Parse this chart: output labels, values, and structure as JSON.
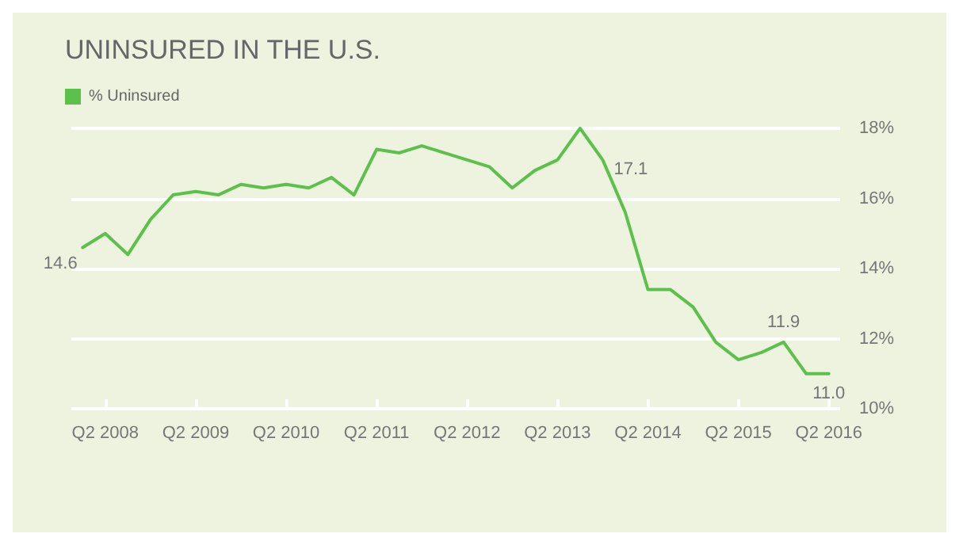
{
  "chart_data": {
    "type": "line",
    "title": "UNINSURED IN THE U.S.",
    "categories": [
      null,
      "Q2 2008",
      null,
      null,
      null,
      "Q2 2009",
      null,
      null,
      null,
      "Q2 2010",
      null,
      null,
      null,
      "Q2 2011",
      null,
      null,
      null,
      "Q2 2012",
      null,
      null,
      null,
      "Q2 2013",
      null,
      null,
      null,
      "Q2 2014",
      null,
      null,
      null,
      "Q2 2015",
      null,
      null,
      null,
      "Q2 2016"
    ],
    "series": [
      {
        "name": "% Uninsured",
        "color": "#5cc14a",
        "values": [
          14.6,
          15.0,
          14.4,
          15.4,
          16.1,
          16.2,
          16.1,
          16.4,
          16.3,
          16.4,
          16.3,
          16.6,
          16.1,
          17.4,
          17.3,
          17.5,
          null,
          null,
          16.9,
          16.3,
          16.8,
          17.1,
          18.0,
          17.1,
          15.6,
          13.4,
          13.4,
          12.9,
          11.9,
          11.4,
          11.6,
          11.9,
          11.0,
          11.0
        ],
        "value_labels": [
          "14.6",
          null,
          null,
          null,
          null,
          null,
          null,
          null,
          null,
          null,
          null,
          null,
          null,
          null,
          null,
          null,
          null,
          null,
          null,
          null,
          null,
          null,
          null,
          "17.1",
          null,
          null,
          null,
          null,
          null,
          null,
          null,
          "11.9",
          null,
          "11.0"
        ]
      }
    ],
    "ylim": [
      10,
      18
    ],
    "yticks": [
      {
        "value": 10,
        "label": "10%"
      },
      {
        "value": 12,
        "label": "12%"
      },
      {
        "value": 14,
        "label": "14%"
      },
      {
        "value": 16,
        "label": "16%"
      },
      {
        "value": 18,
        "label": "18%"
      }
    ],
    "grid": "y",
    "legend": "top left",
    "marker": "none",
    "line_style": "solid"
  }
}
